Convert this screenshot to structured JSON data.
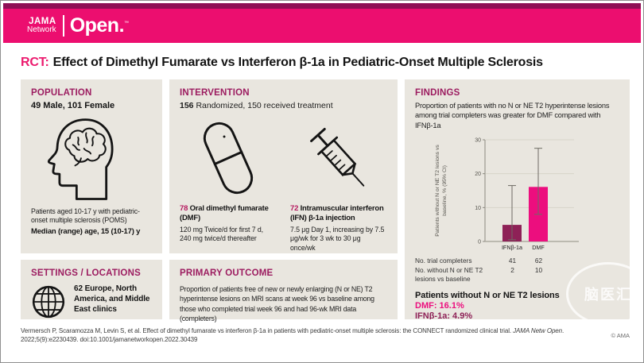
{
  "brand": {
    "jama": "JAMA",
    "network": "Network",
    "open": "Open",
    "tm": "™"
  },
  "title": {
    "tag": "RCT:",
    "text": "Effect of Dimethyl Fumarate vs Interferon β-1a in Pediatric-Onset Multiple Sclerosis"
  },
  "population": {
    "heading": "POPULATION",
    "subheading": "49 Male, 101 Female",
    "description": "Patients aged 10-17 y with pediatric-onset multiple sclerosis (POMS)",
    "median": "Median (range) age, 15 (10-17) y"
  },
  "settings": {
    "heading": "SETTINGS / LOCATIONS",
    "text": "62 Europe, North America, and Middle East clinics"
  },
  "intervention": {
    "heading": "INTERVENTION",
    "randomized_count": "156",
    "randomized_rest": " Randomized, 150 received treatment",
    "arms": [
      {
        "count": "78",
        "name": " Oral dimethyl fumarate (DMF)",
        "detail": "120 mg Twice/d for first 7 d, 240 mg twice/d thereafter"
      },
      {
        "count": "72",
        "name": " Intramuscular interferon (IFN) β-1a injection",
        "detail": "7.5 μg Day 1, increasing by 7.5 μg/wk for 3 wk to 30 μg once/wk"
      }
    ]
  },
  "primary_outcome": {
    "heading": "PRIMARY OUTCOME",
    "text": "Proportion of patients free of new or newly enlarging (N or NE) T2 hyperintense lesions on MRI scans at week 96 vs baseline among those who completed trial week 96 and had 96-wk MRI data (completers)"
  },
  "findings": {
    "heading": "FINDINGS",
    "description": "Proportion of patients with no N or NE T2 hyperintense lesions among trial completers was greater for DMF compared with IFNβ-1a",
    "table": {
      "rows": [
        {
          "label": "No. trial completers",
          "values": [
            "41",
            "62"
          ]
        },
        {
          "label": "No. without N or NE T2 lesions vs baseline",
          "values": [
            "2",
            "10"
          ]
        }
      ]
    },
    "summary_heading": "Patients without N or NE T2 lesions",
    "summary_dmf": "DMF: 16.1%",
    "summary_ifn": "IFNβ-1a: 4.9%"
  },
  "chart_data": {
    "type": "bar",
    "categories": [
      "IFNβ-1a",
      "DMF"
    ],
    "values": [
      4.9,
      16.1
    ],
    "error_low": [
      0.5,
      8.0
    ],
    "error_high": [
      16.5,
      27.5
    ],
    "title": "",
    "xlabel": "",
    "ylabel": "Patients without N or NE T2 lesions vs baseline, % (95% CI)",
    "ylabel_lines": [
      "Patients without N or NE T2 lesions vs",
      "baseline, % (95% CI)"
    ],
    "ylim": [
      0,
      30
    ],
    "yticks": [
      0,
      10,
      20,
      30
    ],
    "grid": true,
    "bar_colors": [
      "#8e2157",
      "#ec0e7e"
    ]
  },
  "footer": {
    "citation_1": "Vermersch P, Scaramozza M, Levin S, et al. Effect of dimethyl fumarate vs interferon β-1a in patients with pediatric-onset multiple sclerosis: the CONNECT randomized clinical trial. ",
    "citation_journal": "JAMA Netw Open",
    "citation_2": ". 2022;5(9):e2230439. doi:10.1001/jamanetworkopen.2022.30439",
    "copyright": "© AMA"
  },
  "watermark": "脑医汇",
  "colors": {
    "brand_pink": "#ec0e6f",
    "top_stripe": "#8e1055",
    "heading_berry": "#9c1c60",
    "dmf_pink": "#ec0e7e",
    "ifn_maroon": "#8e2157",
    "panel_bg": "#e9e6df"
  }
}
